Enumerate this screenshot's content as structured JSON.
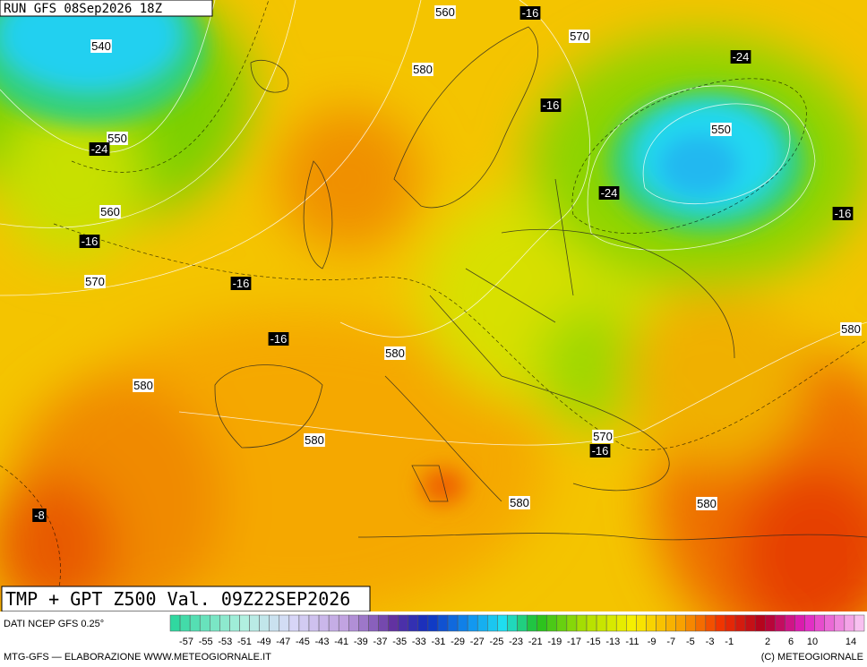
{
  "header": {
    "run": "RUN GFS 08Sep2026 18Z",
    "title": "TMP + GPT Z500 Val. 09Z22SEP2026"
  },
  "map": {
    "geopotential_labels": [
      560,
      570,
      540,
      580,
      550,
      550,
      560,
      570,
      580,
      580,
      580,
      580,
      570,
      580,
      580
    ],
    "temperature_labels": [
      -16,
      -24,
      -16,
      -24,
      -24,
      -16,
      -16,
      -16,
      -16,
      -16,
      -8
    ]
  },
  "legend": {
    "source": "DATI NCEP GFS 0.25°",
    "labels": [
      -57,
      -55,
      -53,
      -51,
      -49,
      -47,
      -45,
      -43,
      -41,
      -39,
      -37,
      -35,
      -33,
      -31,
      -29,
      -27,
      -25,
      -23,
      -21,
      -19,
      -17,
      -15,
      -13,
      -11,
      -9,
      -7,
      -5,
      -3,
      -1,
      2,
      6,
      10,
      14
    ]
  },
  "footer": {
    "credit": "MTG-GFS — ELABORAZIONE WWW.METEOGIORNALE.IT",
    "copyright": "(C) METEOGIORNALE"
  }
}
